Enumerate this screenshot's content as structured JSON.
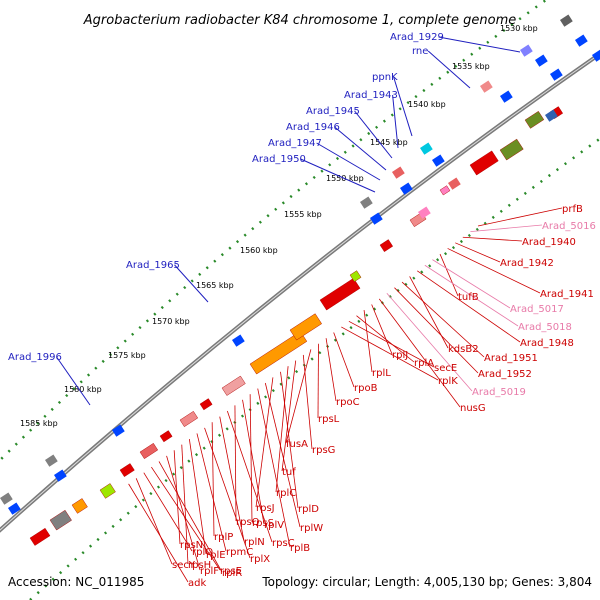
{
  "title": "Agrobacterium radiobacter K84 chromosome 1, complete genome",
  "footer": {
    "accession": "Accession: NC_011985",
    "summary": "Topology: circular; Length: 4,005,130 bp; Genes: 3,804"
  },
  "colors": {
    "blue_label": "#1f1fbf",
    "red_label": "#cc0000",
    "pink_label": "#e87aa8",
    "backbone": "#888888",
    "tick_dots": "#2a8a2a"
  },
  "ticks": [
    "1530 kbp",
    "1535 kbp",
    "1540 kbp",
    "1545 kbp",
    "1550 kbp",
    "1555 kbp",
    "1560 kbp",
    "1565 kbp",
    "1570 kbp",
    "1575 kbp",
    "1580 kbp",
    "1585 kbp"
  ],
  "labels_top": [
    "Arad_1929",
    "rne",
    "ppnK",
    "Arad_1943",
    "Arad_1945",
    "Arad_1946",
    "Arad_1947",
    "Arad_1950",
    "Arad_1965",
    "Arad_1996"
  ],
  "labels_right": [
    "prfB",
    "Arad_5016",
    "Arad_1940",
    "Arad_1942",
    "Arad_1941",
    "tufB",
    "Arad_5017",
    "Arad_5018",
    "Arad_1948",
    "kdsB2",
    "Arad_1951",
    "Arad_1952",
    "Arad_5019",
    "nusG",
    "rplJ",
    "rplL",
    "rplA",
    "secE",
    "rplK",
    "rpoB",
    "rpoC",
    "rpsL",
    "fusA",
    "rpsG",
    "tuf",
    "rplC",
    "rplD",
    "rpsJ",
    "rplW",
    "rplB",
    "rpsS",
    "rplV",
    "rpsQ",
    "rpsC",
    "rplN",
    "rplP",
    "rplX",
    "rpmC",
    "rplE",
    "rpsH",
    "rpsN",
    "rplF",
    "rplR",
    "rpsE",
    "rplO",
    "secY",
    "adk"
  ]
}
